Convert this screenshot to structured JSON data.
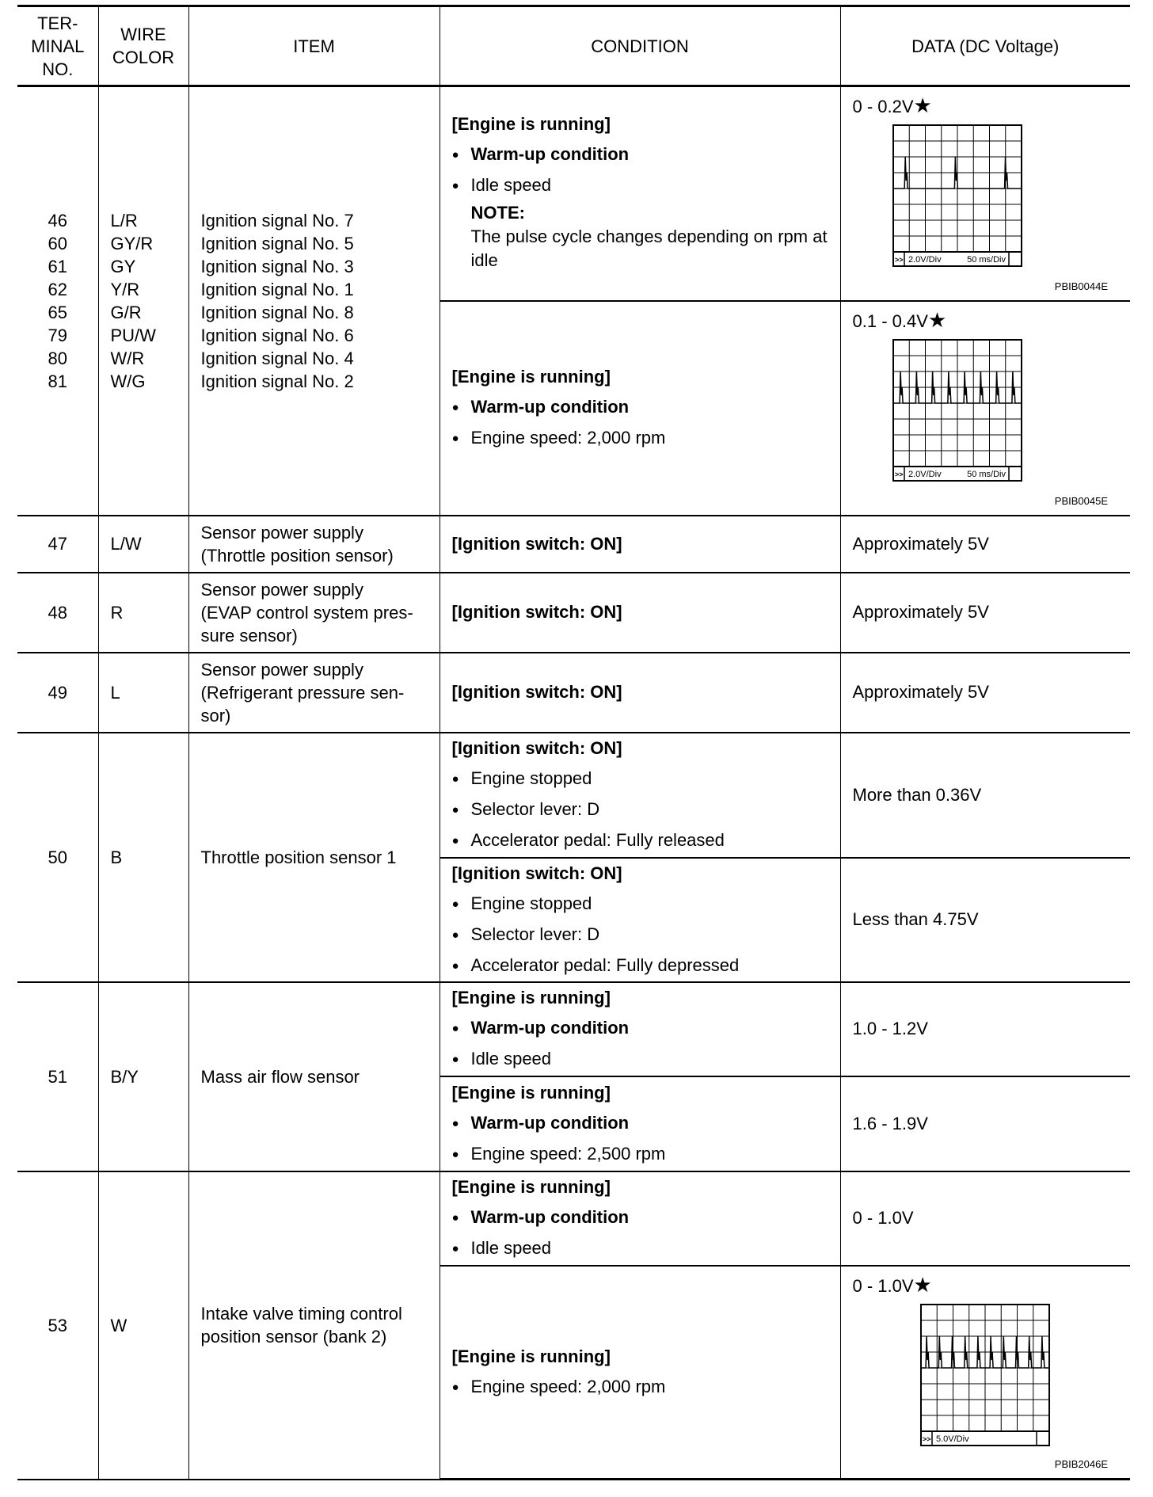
{
  "headers": [
    "TER-\nMINAL\nNO.",
    "WIRE\nCOLOR",
    "ITEM",
    "CONDITION",
    "DATA (DC Voltage)"
  ],
  "rows": [
    {
      "terminals": [
        "46",
        "60",
        "61",
        "62",
        "65",
        "79",
        "80",
        "81"
      ],
      "wires": [
        "L/R",
        "GY/R",
        "GY",
        "Y/R",
        "G/R",
        "PU/W",
        "W/R",
        "W/G"
      ],
      "items": [
        "Ignition signal No. 7",
        "Ignition signal No. 5",
        "Ignition signal No. 3",
        "Ignition signal No. 1",
        "Ignition signal No. 8",
        "Ignition signal No. 6",
        "Ignition signal No. 4",
        "Ignition signal No. 2"
      ],
      "subs": [
        {
          "cond": [
            {
              "t": "h",
              "v": "[Engine is running]"
            },
            {
              "t": "bb",
              "v": "Warm-up condition"
            },
            {
              "t": "bn",
              "v": "Idle speed"
            },
            {
              "t": "note",
              "v": "NOTE:"
            },
            {
              "t": "nt",
              "v": "The pulse cycle changes depending on rpm at idle"
            }
          ],
          "data": "0 - 0.2V",
          "star": "★",
          "scope": {
            "volts": "2.0V/Div",
            "time": "50 ms/Div",
            "code": "PBIB0044E",
            "pulses": 3
          }
        },
        {
          "cond": [
            {
              "t": "h",
              "v": "[Engine is running]"
            },
            {
              "t": "bb",
              "v": "Warm-up condition"
            },
            {
              "t": "bn",
              "v": "Engine speed: 2,000 rpm"
            }
          ],
          "data": "0.1 - 0.4V",
          "star": "★",
          "scope": {
            "volts": "2.0V/Div",
            "time": "50 ms/Div",
            "code": "PBIB0045E",
            "pulses": 8
          }
        }
      ]
    },
    {
      "terminals": [
        "47"
      ],
      "wires": [
        "L/W"
      ],
      "items": [
        "Sensor power supply",
        "(Throttle position sensor)"
      ],
      "subs": [
        {
          "cond": [
            {
              "t": "h",
              "v": "[Ignition switch: ON]"
            }
          ],
          "data": "Approximately 5V"
        }
      ]
    },
    {
      "terminals": [
        "48"
      ],
      "wires": [
        "R"
      ],
      "items": [
        "Sensor power supply",
        "(EVAP control system pres-",
        "sure sensor)"
      ],
      "subs": [
        {
          "cond": [
            {
              "t": "h",
              "v": "[Ignition switch: ON]"
            }
          ],
          "data": "Approximately 5V"
        }
      ]
    },
    {
      "terminals": [
        "49"
      ],
      "wires": [
        "L"
      ],
      "items": [
        "Sensor power supply",
        "(Refrigerant pressure sen-",
        "sor)"
      ],
      "subs": [
        {
          "cond": [
            {
              "t": "h",
              "v": "[Ignition switch: ON]"
            }
          ],
          "data": "Approximately 5V"
        }
      ]
    },
    {
      "terminals": [
        "50"
      ],
      "wires": [
        "B"
      ],
      "items": [
        "Throttle position sensor 1"
      ],
      "subs": [
        {
          "cond": [
            {
              "t": "h",
              "v": "[Ignition switch: ON]"
            },
            {
              "t": "bn",
              "v": "Engine stopped"
            },
            {
              "t": "bn",
              "v": "Selector lever: D"
            },
            {
              "t": "bn",
              "v": "Accelerator pedal: Fully released"
            }
          ],
          "data": "More than 0.36V"
        },
        {
          "cond": [
            {
              "t": "h",
              "v": "[Ignition switch: ON]"
            },
            {
              "t": "bn",
              "v": "Engine stopped"
            },
            {
              "t": "bn",
              "v": "Selector lever: D"
            },
            {
              "t": "bn",
              "v": "Accelerator pedal: Fully depressed"
            }
          ],
          "data": "Less than 4.75V"
        }
      ]
    },
    {
      "terminals": [
        "51"
      ],
      "wires": [
        "B/Y"
      ],
      "items": [
        "Mass air flow sensor"
      ],
      "subs": [
        {
          "cond": [
            {
              "t": "h",
              "v": "[Engine is running]"
            },
            {
              "t": "bb",
              "v": "Warm-up condition"
            },
            {
              "t": "bn",
              "v": "Idle speed"
            }
          ],
          "data": "1.0 - 1.2V"
        },
        {
          "cond": [
            {
              "t": "h",
              "v": "[Engine is running]"
            },
            {
              "t": "bb",
              "v": "Warm-up condition"
            },
            {
              "t": "bn",
              "v": "Engine speed: 2,500 rpm"
            }
          ],
          "data": "1.6 - 1.9V"
        }
      ]
    },
    {
      "terminals": [
        "53"
      ],
      "wires": [
        "W"
      ],
      "items": [
        "Intake valve timing control",
        "position sensor (bank 2)"
      ],
      "subs": [
        {
          "cond": [
            {
              "t": "h",
              "v": "[Engine is running]"
            },
            {
              "t": "bb",
              "v": "Warm-up condition"
            },
            {
              "t": "bn",
              "v": "Idle speed"
            }
          ],
          "data": "0 - 1.0V"
        },
        {
          "cond": [
            {
              "t": "h",
              "v": "[Engine is running]"
            },
            {
              "t": "bn",
              "v": "Engine speed: 2,000 rpm"
            }
          ],
          "data": "0 - 1.0V",
          "star": "★",
          "scope": {
            "volts": "5.0V/Div",
            "time": "",
            "code": "PBIB2046E",
            "pulses": 10
          }
        }
      ]
    }
  ]
}
